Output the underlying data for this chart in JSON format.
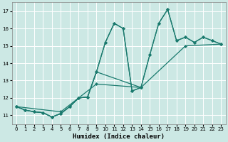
{
  "xlabel": "Humidex (Indice chaleur)",
  "xlim": [
    -0.5,
    23.5
  ],
  "ylim": [
    10.5,
    17.5
  ],
  "xticks": [
    0,
    1,
    2,
    3,
    4,
    5,
    6,
    7,
    8,
    9,
    10,
    11,
    12,
    13,
    14,
    15,
    16,
    17,
    18,
    19,
    20,
    21,
    22,
    23
  ],
  "yticks": [
    11,
    12,
    13,
    14,
    15,
    16,
    17
  ],
  "line_color": "#1a7a6e",
  "bg_color": "#cce8e4",
  "grid_color": "#ffffff",
  "lines": [
    {
      "x": [
        0,
        1,
        2,
        3,
        4,
        5,
        6,
        7,
        8,
        9,
        10,
        11,
        12,
        13,
        14,
        15,
        16,
        17,
        18,
        19,
        20,
        21,
        22,
        23
      ],
      "y": [
        11.5,
        11.3,
        11.2,
        11.15,
        10.9,
        11.1,
        11.5,
        12.0,
        12.05,
        13.5,
        15.2,
        16.3,
        16.0,
        12.4,
        12.6,
        14.5,
        16.3,
        17.1,
        15.3,
        15.5,
        15.2,
        15.5,
        15.3,
        15.1
      ]
    },
    {
      "x": [
        0,
        1,
        2,
        3,
        4,
        5,
        6,
        7,
        8,
        9,
        10,
        11,
        12,
        13,
        14
      ],
      "y": [
        11.5,
        11.3,
        11.2,
        11.15,
        10.9,
        11.1,
        11.5,
        12.0,
        12.05,
        13.5,
        15.2,
        16.3,
        16.0,
        12.4,
        12.6
      ]
    },
    {
      "x": [
        0,
        1,
        2,
        3,
        4,
        5,
        6,
        7,
        8,
        9,
        14,
        15,
        16,
        17,
        18,
        19,
        20,
        21,
        22,
        23
      ],
      "y": [
        11.5,
        11.3,
        11.2,
        11.15,
        10.9,
        11.1,
        11.5,
        12.0,
        12.05,
        13.5,
        12.6,
        14.5,
        16.3,
        17.1,
        15.3,
        15.5,
        15.2,
        15.5,
        15.3,
        15.1
      ]
    },
    {
      "x": [
        0,
        5,
        9,
        14,
        19,
        23
      ],
      "y": [
        11.5,
        11.2,
        12.8,
        12.6,
        15.0,
        15.1
      ]
    }
  ]
}
